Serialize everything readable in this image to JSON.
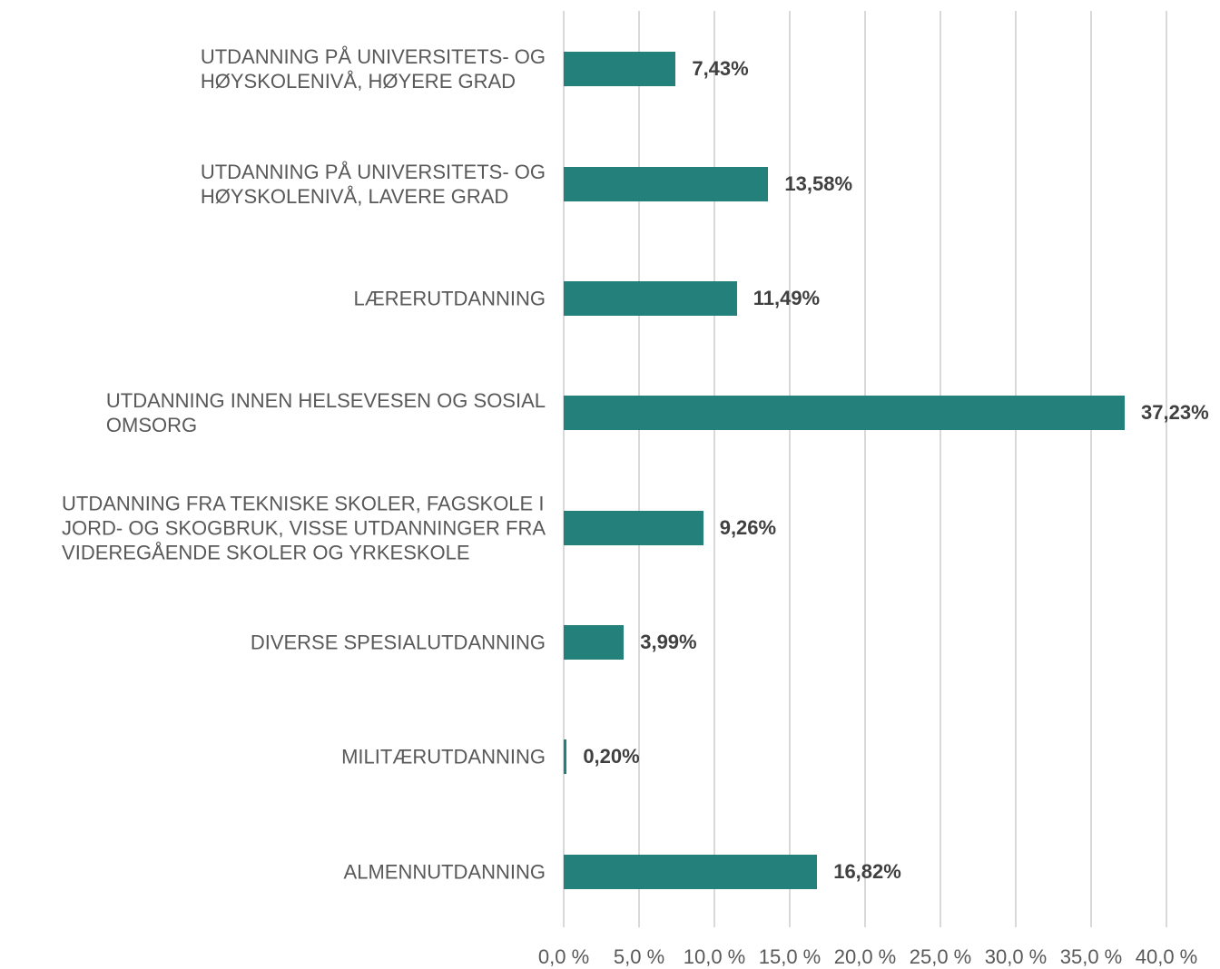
{
  "chart_data": {
    "type": "bar",
    "orientation": "horizontal",
    "categories": [
      "UTDANNING PÅ UNIVERSITETS- OG\nHØYSKOLENIVÅ, HØYERE GRAD",
      "UTDANNING PÅ UNIVERSITETS- OG\nHØYSKOLENIVÅ, LAVERE GRAD",
      "LÆRERUTDANNING",
      "UTDANNING INNEN HELSEVESEN OG SOSIAL\nOMSORG",
      "UTDANNING FRA TEKNISKE SKOLER, FAGSKOLE I\nJORD- OG SKOGBRUK, VISSE UTDANNINGER FRA\nVIDEREGÅENDE SKOLER OG YRKESKOLE",
      "DIVERSE SPESIALUTDANNING",
      "MILITÆRUTDANNING",
      "ALMENNUTDANNING"
    ],
    "values": [
      7.43,
      13.58,
      11.49,
      37.23,
      9.26,
      3.99,
      0.2,
      16.82
    ],
    "value_labels": [
      "7,43%",
      "13,58%",
      "11,49%",
      "37,23%",
      "9,26%",
      "3,99%",
      "0,20%",
      "16,82%"
    ],
    "color": "#23807a",
    "xlim": [
      0,
      40
    ],
    "xticks": [
      {
        "value": 0,
        "label": "0,0 %"
      },
      {
        "value": 5,
        "label": "5,0 %"
      },
      {
        "value": 10,
        "label": "10,0 %"
      },
      {
        "value": 15,
        "label": "15,0 %"
      },
      {
        "value": 20,
        "label": "20,0 %"
      },
      {
        "value": 25,
        "label": "25,0 %"
      },
      {
        "value": 30,
        "label": "30,0 %"
      },
      {
        "value": 35,
        "label": "35,0 %"
      },
      {
        "value": 40,
        "label": "40,0 %"
      }
    ],
    "grid": true
  }
}
